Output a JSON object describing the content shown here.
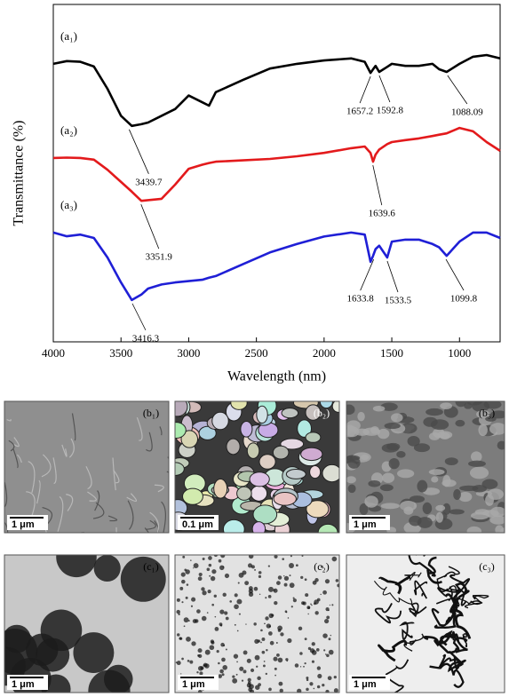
{
  "chart_data": {
    "type": "line",
    "xlabel": "Wavelength (nm)",
    "ylabel": "Transmittance (%)",
    "xlim": [
      4000,
      700
    ],
    "ylim": [
      0,
      100
    ],
    "xticks": [
      4000,
      3500,
      3000,
      2500,
      2000,
      1500,
      1000
    ],
    "x": [
      4000,
      3900,
      3800,
      3700,
      3600,
      3500,
      3420,
      3350,
      3300,
      3200,
      3100,
      3000,
      2900,
      2850,
      2800,
      2600,
      2400,
      2200,
      2000,
      1800,
      1700,
      1657,
      1638,
      1620,
      1593,
      1534,
      1500,
      1400,
      1300,
      1200,
      1150,
      1095,
      1000,
      900,
      800,
      700
    ],
    "series": [
      {
        "name": "(a₁)",
        "color": "#000000",
        "values": [
          82.4,
          83.2,
          83,
          81.6,
          75,
          67,
          64,
          64.5,
          65,
          67,
          69,
          73,
          71,
          70,
          74,
          77.6,
          81,
          82.4,
          83.4,
          84,
          83,
          79.7,
          80.8,
          81.8,
          80,
          81.5,
          82.4,
          81.8,
          81.8,
          82.4,
          80.8,
          80,
          82.4,
          84.5,
          85,
          84
        ]
      },
      {
        "name": "(a₂)",
        "color": "#e31a1c",
        "values": [
          54.5,
          54.6,
          54.5,
          54,
          51,
          47.4,
          44.5,
          41.8,
          42,
          42.4,
          46.6,
          51.3,
          52.5,
          53,
          53.4,
          53.8,
          54.2,
          55,
          56,
          57.4,
          57.9,
          56,
          53.4,
          55.5,
          57,
          58.6,
          59.2,
          59.8,
          60.3,
          61,
          61.4,
          61.8,
          63.4,
          62.4,
          59.2,
          56.6
        ]
      },
      {
        "name": "(a₃)",
        "color": "#1f1fd6",
        "values": [
          32.4,
          31.3,
          31.8,
          30.8,
          25,
          17.6,
          12.4,
          14,
          15.8,
          17,
          17.6,
          18,
          18.4,
          19,
          19.5,
          23,
          26.5,
          29,
          31.2,
          32.4,
          31.8,
          23.7,
          25.5,
          27.5,
          28.5,
          25,
          29.7,
          30.3,
          30.3,
          29,
          28,
          25.5,
          29.7,
          32.4,
          32.4,
          30.8
        ]
      }
    ],
    "annotations": [
      {
        "series": 0,
        "label": "3439.7"
      },
      {
        "series": 0,
        "label": "1657.2"
      },
      {
        "series": 0,
        "label": "1592.8"
      },
      {
        "series": 0,
        "label": "1088.09"
      },
      {
        "series": 1,
        "label": "3351.9"
      },
      {
        "series": 1,
        "label": "1639.6"
      },
      {
        "series": 2,
        "label": "3416.3"
      },
      {
        "series": 2,
        "label": "1633.8"
      },
      {
        "series": 2,
        "label": "1533.5"
      },
      {
        "series": 2,
        "label": "1099.8"
      }
    ]
  },
  "micrographs": [
    {
      "label": "(b₁)",
      "scale": "1 μm"
    },
    {
      "label": "(b₂)",
      "scale": "0.1 μm"
    },
    {
      "label": "(b₃)",
      "scale": "1 μm"
    },
    {
      "label": "(c₁)",
      "scale": "1 μm"
    },
    {
      "label": "(c₂)",
      "scale": "1 μm"
    },
    {
      "label": "(c₃)",
      "scale": "1 μm"
    }
  ]
}
